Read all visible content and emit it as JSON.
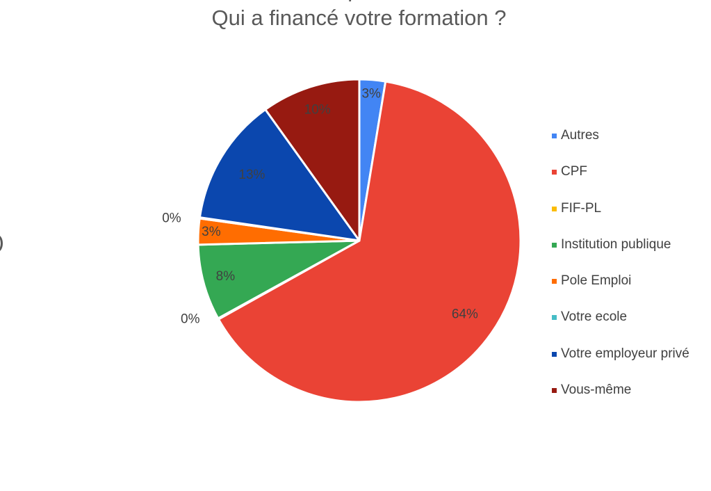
{
  "chart_data": {
    "type": "pie",
    "title": "Qui a financé votre formation ?",
    "title_fragment": "g",
    "categories": [
      "Autres",
      "CPF",
      "FIF-PL",
      "Institution publique",
      "Pole Emploi",
      "Votre ecole",
      "Votre employeur privé",
      "Vous-même"
    ],
    "values": [
      2.6,
      64.3,
      0.1,
      7.6,
      2.6,
      0.1,
      12.8,
      9.9
    ],
    "labels": [
      "3%",
      "64%",
      "0%",
      "8%",
      "3%",
      "0%",
      "13%",
      "10%"
    ],
    "colors": [
      "#4285F4",
      "#EA4335",
      "#FBBC04",
      "#34A853",
      "#FF6D01",
      "#46BDC6",
      "#0B47AE",
      "#971A11"
    ],
    "legend_position": "right",
    "start_angle_deg": 0,
    "direction": "clockwise"
  }
}
